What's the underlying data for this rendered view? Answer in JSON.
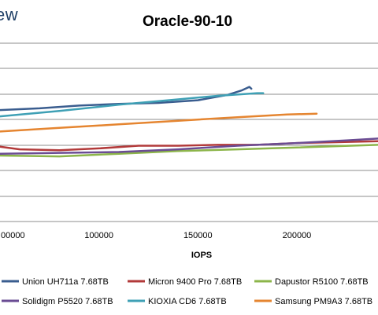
{
  "brand": {
    "fragment": "ew"
  },
  "chart_data": {
    "type": "line",
    "title": "Oracle-90-10",
    "xlabel": "IOPS",
    "ylabel": "",
    "x_ticks": [
      {
        "value": 100000,
        "label": "100000"
      },
      {
        "value": 150000,
        "label": "150000"
      },
      {
        "value": 200000,
        "label": "200000"
      }
    ],
    "x_partial_tick_label": "00000",
    "xlim": [
      50000,
      241000
    ],
    "grid": true,
    "legend_position": "bottom",
    "series": [
      {
        "name": "Union UH711a 7.68TB",
        "color": "#3a5d8f",
        "points": [
          [
            50000,
            0.625
          ],
          [
            70000,
            0.635
          ],
          [
            90000,
            0.65
          ],
          [
            110000,
            0.66
          ],
          [
            130000,
            0.665
          ],
          [
            150000,
            0.68
          ],
          [
            165000,
            0.71
          ],
          [
            172000,
            0.735
          ],
          [
            176000,
            0.755
          ],
          [
            177000,
            0.745
          ]
        ]
      },
      {
        "name": "Micron 9400 Pro 7.68TB",
        "color": "#b23a3a",
        "points": [
          [
            50000,
            0.42
          ],
          [
            60000,
            0.405
          ],
          [
            80000,
            0.4
          ],
          [
            100000,
            0.41
          ],
          [
            120000,
            0.425
          ],
          [
            140000,
            0.425
          ],
          [
            160000,
            0.43
          ],
          [
            180000,
            0.43
          ],
          [
            200000,
            0.44
          ],
          [
            220000,
            0.445
          ],
          [
            241000,
            0.45
          ]
        ]
      },
      {
        "name": "Dapustor R5100 7.68TB",
        "color": "#8cb54a",
        "points": [
          [
            50000,
            0.37
          ],
          [
            80000,
            0.365
          ],
          [
            110000,
            0.38
          ],
          [
            140000,
            0.395
          ],
          [
            170000,
            0.405
          ],
          [
            200000,
            0.415
          ],
          [
            241000,
            0.43
          ]
        ]
      },
      {
        "name": "Solidigm P5520 7.68TB",
        "color": "#6a4c93",
        "points": [
          [
            50000,
            0.38
          ],
          [
            80000,
            0.385
          ],
          [
            110000,
            0.39
          ],
          [
            140000,
            0.405
          ],
          [
            170000,
            0.425
          ],
          [
            200000,
            0.44
          ],
          [
            225000,
            0.455
          ],
          [
            241000,
            0.465
          ]
        ]
      },
      {
        "name": "KIOXIA CD6 7.68TB",
        "color": "#3fa0b5",
        "points": [
          [
            50000,
            0.59
          ],
          [
            80000,
            0.62
          ],
          [
            110000,
            0.655
          ],
          [
            140000,
            0.685
          ],
          [
            160000,
            0.705
          ],
          [
            180000,
            0.72
          ],
          [
            183000,
            0.72
          ]
        ]
      },
      {
        "name": "Samsung PM9A3 7.68TB",
        "color": "#e58530",
        "points": [
          [
            50000,
            0.505
          ],
          [
            80000,
            0.525
          ],
          [
            110000,
            0.545
          ],
          [
            140000,
            0.565
          ],
          [
            170000,
            0.585
          ],
          [
            195000,
            0.6
          ],
          [
            210000,
            0.605
          ]
        ]
      }
    ]
  }
}
